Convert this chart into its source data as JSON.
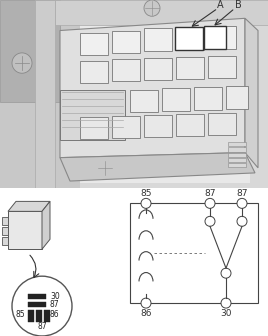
{
  "bg_color": "#ffffff",
  "lc": "#444444",
  "label_A": "A",
  "label_B": "B",
  "circuit_labels_top": [
    "85",
    "87",
    "87"
  ],
  "circuit_labels_bottom": [
    "86",
    "30"
  ],
  "font_size": 7,
  "coil_loops": 4
}
